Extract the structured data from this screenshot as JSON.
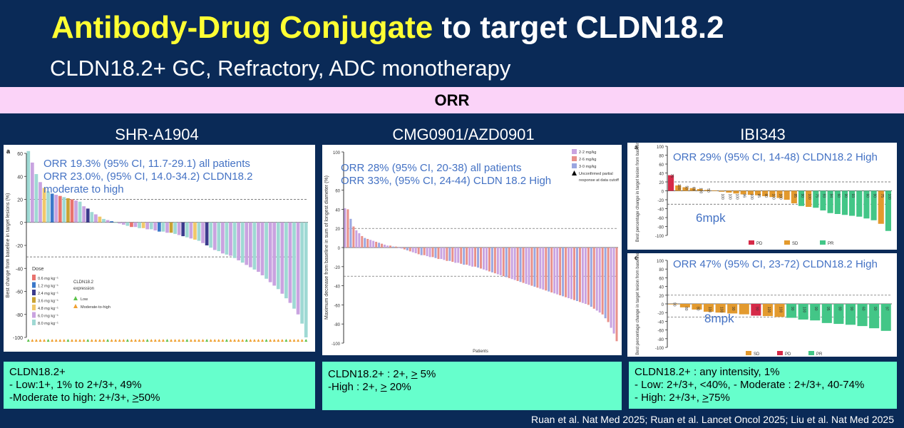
{
  "title_highlight": "Antibody-Drug Conjugate",
  "title_rest": " to target CLDN18.2",
  "subtitle": "CLDN18.2+ GC, Refractory, ADC monotherapy",
  "banner": "ORR",
  "citation": "Ruan et al. Nat Med 2025; Ruan et al. Lancet Oncol 2025; Liu et al. Nat Med 2025",
  "panels": {
    "shr": {
      "drug": "SHR-A1904",
      "panel_letter": "a",
      "orr1": "ORR 19.3% (95% CI, 11.7-29.1) all patients",
      "orr2": "ORR 23.0%, (95% CI, 14.0-34.2) CLDN18.2",
      "orr3": "moderate to high",
      "note1": "CLDN18.2+",
      "note2": "- Low:1+, 1% to 2+/3+, 49%",
      "note3_pre": "-Moderate to high: 2+/3+, ",
      "note3_u": ">",
      "note3_post": "50%"
    },
    "cmg": {
      "drug": "CMG0901/AZD0901",
      "orr1": "ORR 28% (95% CI, 20-38) all patients",
      "orr2": "ORR 33%, (95% CI, 24-44) CLDN 18.2 High",
      "note1_pre": "CLDN18.2+ : 2+, ",
      "note1_u": ">",
      "note1_post": " 5%",
      "note2_pre": "-High : 2+, ",
      "note2_u": ">",
      "note2_post": " 20%"
    },
    "ibi": {
      "drug": "IBI343",
      "panel_a": "a",
      "panel_c": "c",
      "orr_a": "ORR 29% (95% CI, 14-48) CLDN18.2 High",
      "orr_c": "ORR 47% (95% CI, 23-72) CLDN18.2 High",
      "mpk_a": "6mpk",
      "mpk_c": "8mpk",
      "note1": "CLDN18.2+ : any intensity, 1%",
      "note2": "- Low: 2+/3+, <40%, - Moderate : 2+/3+, 40-74%",
      "note3_pre": "- High: 2+/3+, ",
      "note3_u": ">",
      "note3_post": "75%"
    }
  },
  "chart_data": [
    {
      "type": "bar",
      "id": "shr",
      "ylabel": "Best change from baseline in target lesions (%)",
      "ylim": [
        -100,
        60
      ],
      "yticks": [
        -100,
        -80,
        -60,
        -40,
        -20,
        0,
        20,
        40,
        60
      ],
      "reference_lines": [
        20,
        -30
      ],
      "legend_dose_title": "Dose",
      "legend_doses": [
        {
          "label": "0.6 mg kg⁻¹",
          "color": "#e8736e"
        },
        {
          "label": "1.2 mg kg⁻¹",
          "color": "#3b78c9"
        },
        {
          "label": "2.4 mg kg⁻¹",
          "color": "#3b3b8c"
        },
        {
          "label": "3.6 mg kg⁻¹",
          "color": "#c9a233"
        },
        {
          "label": "4.8 mg kg⁻¹",
          "color": "#f0c86a"
        },
        {
          "label": "6.0 mg kg⁻¹",
          "color": "#c9a3e0"
        },
        {
          "label": "8.0 mg kg⁻¹",
          "color": "#9fd9d4"
        }
      ],
      "legend_expr_title1": "CLDN18.2",
      "legend_expr_title2": "expression",
      "legend_expr": [
        {
          "label": "Low",
          "color": "#5cc24a"
        },
        {
          "label": "Moderate-to-high",
          "color": "#f0a030"
        }
      ],
      "values": [
        62,
        52,
        42,
        35,
        30,
        27,
        25,
        24,
        23,
        22,
        21,
        20,
        19,
        18,
        14,
        12,
        9,
        7,
        5,
        3,
        2,
        1,
        0,
        -1,
        -2,
        -3,
        -4,
        -4,
        -5,
        -5,
        -6,
        -6,
        -7,
        -8,
        -8,
        -9,
        -9,
        -10,
        -11,
        -12,
        -13,
        -14,
        -15,
        -16,
        -18,
        -20,
        -22,
        -24,
        -25,
        -27,
        -28,
        -29,
        -31,
        -33,
        -35,
        -37,
        -39,
        -41,
        -43,
        -46,
        -49,
        -52,
        -55,
        -58,
        -62,
        -66,
        -70,
        -75,
        -80,
        -88,
        -100
      ],
      "colors": [
        "#9fd9d4",
        "#c9a3e0",
        "#9fd9d4",
        "#c9a3e0",
        "#f0c86a",
        "#9fd9d4",
        "#3b78c9",
        "#c9a3e0",
        "#e8736e",
        "#9fd9d4",
        "#c9a233",
        "#e8736e",
        "#c9a3e0",
        "#9fd9d4",
        "#c9a3e0",
        "#3b3b8c",
        "#9fd9d4",
        "#c9a3e0",
        "#f0c86a",
        "#9fd9d4",
        "#c9a3e0",
        "#3b78c9",
        "#9fd9d4",
        "#c9a3e0",
        "#c9a3e0",
        "#9fd9d4",
        "#e8736e",
        "#c9a3e0",
        "#9fd9d4",
        "#f0c86a",
        "#c9a3e0",
        "#9fd9d4",
        "#c9a3e0",
        "#3b78c9",
        "#9fd9d4",
        "#c9a3e0",
        "#c9a233",
        "#9fd9d4",
        "#c9a3e0",
        "#3b3b8c",
        "#9fd9d4",
        "#c9a3e0",
        "#f0c86a",
        "#9fd9d4",
        "#c9a3e0",
        "#3b3b8c",
        "#9fd9d4",
        "#c9a3e0",
        "#9fd9d4",
        "#c9a3e0",
        "#9fd9d4",
        "#c9a3e0",
        "#9fd9d4",
        "#c9a3e0",
        "#9fd9d4",
        "#c9a3e0",
        "#c9a3e0",
        "#9fd9d4",
        "#c9a3e0",
        "#c9a3e0",
        "#9fd9d4",
        "#c9a3e0",
        "#c9a3e0",
        "#9fd9d4",
        "#c9a3e0",
        "#9fd9d4",
        "#c9a3e0",
        "#9fd9d4",
        "#c9a3e0",
        "#9fd9d4",
        "#9fd9d4"
      ]
    },
    {
      "type": "bar",
      "id": "cmg",
      "ylabel": "Maximum decrease from baseline in sum of longest diameter (%)",
      "xlabel": "Patients",
      "ylim": [
        -100,
        100
      ],
      "yticks": [
        -100,
        -80,
        -60,
        -40,
        -20,
        0,
        20,
        40,
        60,
        100
      ],
      "reference_lines": [
        20,
        -30
      ],
      "legend": [
        {
          "label": "2·2 mg/kg",
          "color": "#c9a3e0"
        },
        {
          "label": "2·6 mg/kg",
          "color": "#e8908a"
        },
        {
          "label": "3·0 mg/kg",
          "color": "#9aa6e0"
        },
        {
          "label": "Unconfirmed partial response at data cutoff",
          "color": "#000000"
        }
      ],
      "values": [
        41,
        40,
        30,
        22,
        18,
        15,
        12,
        10,
        9,
        8,
        7,
        6,
        5,
        4,
        3,
        2,
        2,
        1,
        1,
        0,
        -1,
        -2,
        -3,
        -4,
        -5,
        -6,
        -7,
        -8,
        -8,
        -9,
        -10,
        -10,
        -11,
        -12,
        -12,
        -13,
        -14,
        -14,
        -15,
        -16,
        -16,
        -17,
        -18,
        -18,
        -19,
        -20,
        -20,
        -21,
        -22,
        -23,
        -24,
        -25,
        -26,
        -27,
        -28,
        -29,
        -30,
        -31,
        -32,
        -33,
        -34,
        -35,
        -36,
        -37,
        -38,
        -39,
        -40,
        -41,
        -42,
        -43,
        -44,
        -45,
        -46,
        -47,
        -48,
        -49,
        -50,
        -51,
        -52,
        -53,
        -54,
        -55,
        -56,
        -57,
        -58,
        -59,
        -60,
        -62,
        -64,
        -66,
        -68,
        -70,
        -74,
        -78,
        -84,
        -90,
        -98
      ]
    },
    {
      "type": "bar",
      "id": "ibi_a",
      "ylabel": "Best percentage change in target lesion from baseline",
      "ylim": [
        -100,
        100
      ],
      "yticks": [
        -100,
        -80,
        -60,
        -40,
        -20,
        0,
        20,
        40,
        60,
        80,
        100
      ],
      "reference_lines": [
        20,
        -30
      ],
      "legend": [
        {
          "label": "PD",
          "color": "#d62a48"
        },
        {
          "label": "SD",
          "color": "#e39a2e"
        },
        {
          "label": "PR",
          "color": "#43c687"
        }
      ],
      "values": [
        35,
        12,
        8,
        6,
        4,
        2,
        1,
        -2,
        -4,
        -6,
        -8,
        -9,
        -10,
        -12,
        -14,
        -16,
        -20,
        -28,
        -34,
        -36,
        -38,
        -44,
        -50,
        -52,
        -54,
        -56,
        -58,
        -62,
        -66,
        -74,
        -90
      ],
      "colors": [
        "#d62a48",
        "#e39a2e",
        "#e39a2e",
        "#e39a2e",
        "#e39a2e",
        "#e39a2e",
        "#e39a2e",
        "#e39a2e",
        "#e39a2e",
        "#e39a2e",
        "#e39a2e",
        "#e39a2e",
        "#e39a2e",
        "#e39a2e",
        "#e39a2e",
        "#e39a2e",
        "#e39a2e",
        "#e39a2e",
        "#43c687",
        "#e39a2e",
        "#43c687",
        "#43c687",
        "#43c687",
        "#43c687",
        "#43c687",
        "#43c687",
        "#43c687",
        "#43c687",
        "#43c687",
        "#e39a2e",
        "#43c687"
      ],
      "bar_labels": [
        "75",
        "100",
        "50",
        "69",
        "100",
        "50",
        "",
        "100",
        "100",
        "100",
        "96",
        "100",
        "95",
        "60",
        "100",
        "100",
        "",
        "85",
        "90",
        "100",
        "75",
        "93",
        "94",
        "60",
        "90",
        "93",
        "",
        "60",
        "90",
        "75",
        "100"
      ]
    },
    {
      "type": "bar",
      "id": "ibi_c",
      "ylabel": "Best percentage change in target lesion from baseline",
      "ylim": [
        -100,
        100
      ],
      "yticks": [
        -100,
        -80,
        -60,
        -40,
        -20,
        0,
        20,
        40,
        60,
        80,
        100
      ],
      "reference_lines": [
        20,
        -30
      ],
      "legend": [
        {
          "label": "SD",
          "color": "#e39a2e"
        },
        {
          "label": "PD",
          "color": "#d62a48"
        },
        {
          "label": "PR",
          "color": "#43c687"
        }
      ],
      "values": [
        0,
        -8,
        -13,
        -18,
        -20,
        -22,
        -24,
        -27,
        -28,
        -30,
        -32,
        -36,
        -38,
        -44,
        -46,
        -48,
        -51,
        -56,
        -62
      ],
      "colors": [
        "#e39a2e",
        "#e39a2e",
        "#e39a2e",
        "#e39a2e",
        "#e39a2e",
        "#e39a2e",
        "#e39a2e",
        "#d62a48",
        "#e39a2e",
        "#e39a2e",
        "#43c687",
        "#43c687",
        "#43c687",
        "#43c687",
        "#43c687",
        "#43c687",
        "#43c687",
        "#43c687",
        "#43c687"
      ],
      "bar_labels": [
        "90",
        "80",
        "80",
        "100",
        "100",
        "90",
        "",
        "90",
        "100",
        "100",
        "90",
        "100",
        "90",
        "95",
        "80",
        "90",
        "60",
        "90",
        "97"
      ]
    }
  ]
}
